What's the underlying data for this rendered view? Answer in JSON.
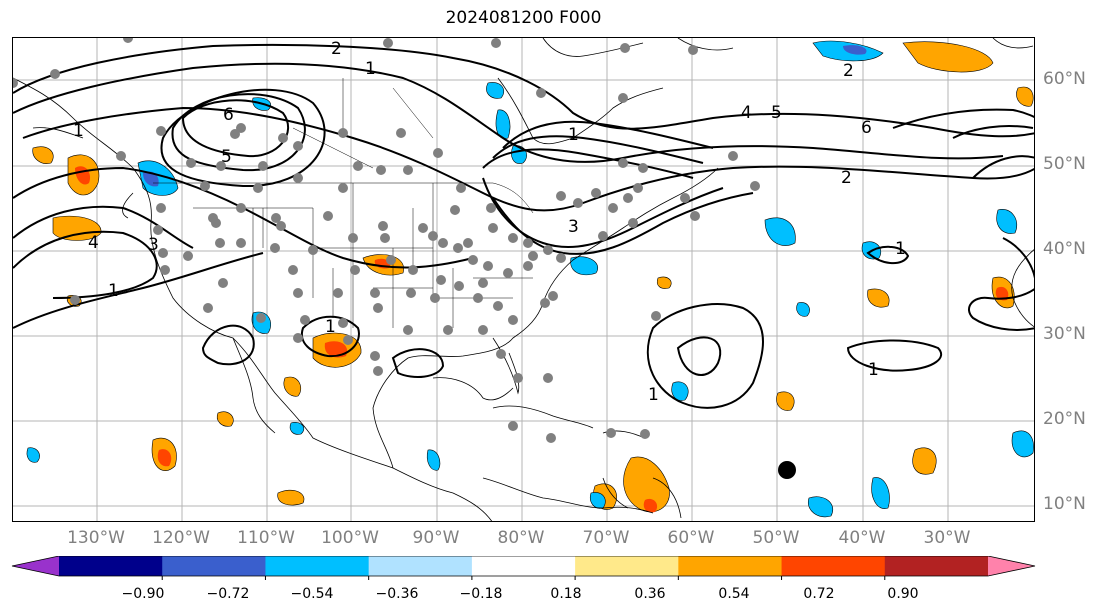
{
  "title": "2024081200 F000",
  "lon_labels": [
    "130°W",
    "120°W",
    "110°W",
    "100°W",
    "90°W",
    "80°W",
    "70°W",
    "60°W",
    "50°W",
    "40°W",
    "30°W"
  ],
  "lat_labels": [
    "60°N",
    "50°N",
    "40°N",
    "30°N",
    "20°N",
    "10°N"
  ],
  "contour_labels": [
    "2",
    "1",
    "6",
    "5",
    "4",
    "3",
    "1",
    "2",
    "6",
    "5",
    "4",
    "1",
    "2",
    "3",
    "1",
    "1",
    "1",
    "1",
    "1"
  ],
  "colorbar": {
    "ticks": [
      "−0.90",
      "−0.72",
      "−0.54",
      "−0.36",
      "−0.18",
      "0.18",
      "0.36",
      "0.54",
      "0.72",
      "0.90"
    ],
    "colors": [
      "#9932cc",
      "#00008b",
      "#3a5fcd",
      "#00bfff",
      "#b0e2ff",
      "#ffffff",
      "#ffe98a",
      "#ffa500",
      "#ff4500",
      "#b22222",
      "#ff82ab"
    ]
  },
  "station_markers": "grey-dot-icon",
  "highlight_marker": "black-dot-icon"
}
